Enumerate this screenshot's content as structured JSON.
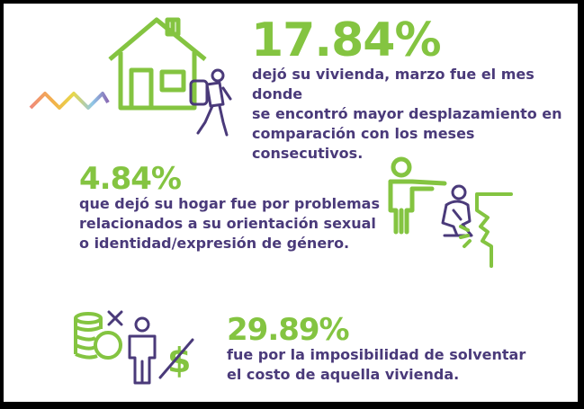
{
  "colors": {
    "accent_green": "#84c441",
    "text_purple": "#4a3a7a",
    "icon_purple": "#4a3a7a"
  },
  "section1": {
    "stat": "17.84%",
    "lines": [
      "dejó su vivienda, marzo fue el mes donde",
      "se encontró mayor desplazamiento en",
      "comparación con los meses consecutivos."
    ]
  },
  "section2": {
    "stat": "4.84%",
    "lines": [
      "que dejó su hogar fue por problemas",
      "relacionados a su orientación sexual",
      "o identidad/expresión de género."
    ]
  },
  "section3": {
    "stat": "29.89%",
    "lines": [
      "fue por la imposibilidad de solventar",
      "el costo de aquella vivienda."
    ]
  },
  "icons": {
    "s1": [
      "rainbow-zigzag-icon",
      "house-icon",
      "hiker-with-backpack-icon"
    ],
    "s2": [
      "pointing-person-icon",
      "kneeling-person-icon",
      "shouting-face-icon"
    ],
    "s3": [
      "coin-stack-icon",
      "cross-mark-icon",
      "person-icon",
      "crossed-dollar-icon"
    ]
  }
}
